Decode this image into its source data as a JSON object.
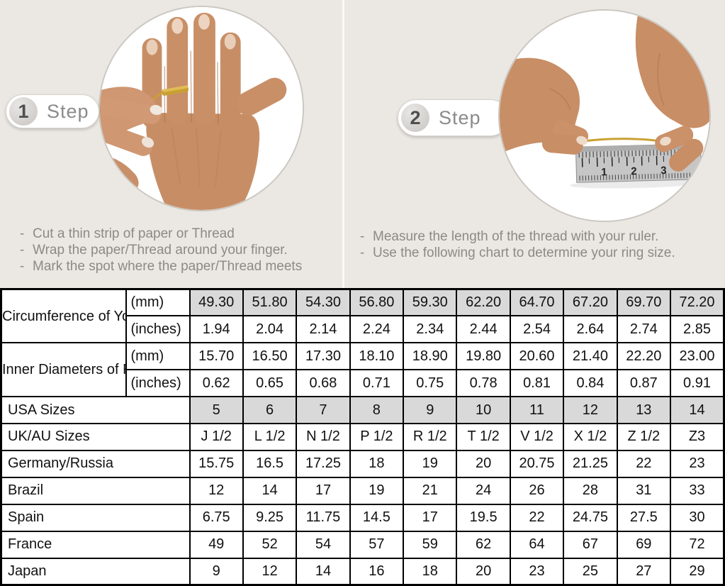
{
  "colors": {
    "top_background": "#ebe8e3",
    "highlight_cell": "#d9d9d9",
    "muted_text": "#8d8a85",
    "table_border": "#000000",
    "thread_gold": "#c9a132"
  },
  "steps": [
    {
      "number": "1",
      "label": "Step",
      "photo_alt": "hand with thread wrapped around ring finger",
      "instructions": [
        "Cut a thin strip of paper or Thread",
        "Wrap the paper/Thread around your finger.",
        "Mark the spot where the paper/Thread meets"
      ]
    },
    {
      "number": "2",
      "label": "Step",
      "photo_alt": "hands measuring thread length with a ruler",
      "ruler_numbers": [
        "1",
        "2",
        "3"
      ],
      "instructions": [
        "Measure the length of the thread with your ruler.",
        "Use the following chart to determine your ring size."
      ]
    }
  ],
  "table": {
    "corner_groups": [
      {
        "label": "Circumference of Your Finger",
        "rows": [
          {
            "unit": "(mm)",
            "highlight": true,
            "values": [
              "49.30",
              "51.80",
              "54.30",
              "56.80",
              "59.30",
              "62.20",
              "64.70",
              "67.20",
              "69.70",
              "72.20"
            ]
          },
          {
            "unit": "(inches)",
            "highlight": false,
            "values": [
              "1.94",
              "2.04",
              "2.14",
              "2.24",
              "2.34",
              "2.44",
              "2.54",
              "2.64",
              "2.74",
              "2.85"
            ]
          }
        ]
      },
      {
        "label": "Inner Diameters of Rings",
        "rows": [
          {
            "unit": "(mm)",
            "highlight": false,
            "values": [
              "15.70",
              "16.50",
              "17.30",
              "18.10",
              "18.90",
              "19.80",
              "20.60",
              "21.40",
              "22.20",
              "23.00"
            ]
          },
          {
            "unit": "(inches)",
            "highlight": false,
            "values": [
              "0.62",
              "0.65",
              "0.68",
              "0.71",
              "0.75",
              "0.78",
              "0.81",
              "0.84",
              "0.87",
              "0.91"
            ]
          }
        ]
      }
    ],
    "size_rows": [
      {
        "label": "USA Sizes",
        "highlight": true,
        "values": [
          "5",
          "6",
          "7",
          "8",
          "9",
          "10",
          "11",
          "12",
          "13",
          "14"
        ]
      },
      {
        "label": "UK/AU Sizes",
        "highlight": false,
        "values": [
          "J 1/2",
          "L 1/2",
          "N 1/2",
          "P 1/2",
          "R 1/2",
          "T 1/2",
          "V 1/2",
          "X 1/2",
          "Z 1/2",
          "Z3"
        ]
      },
      {
        "label": "Germany/Russia",
        "highlight": false,
        "values": [
          "15.75",
          "16.5",
          "17.25",
          "18",
          "19",
          "20",
          "20.75",
          "21.25",
          "22",
          "23"
        ]
      },
      {
        "label": "Brazil",
        "highlight": false,
        "values": [
          "12",
          "14",
          "17",
          "19",
          "21",
          "24",
          "26",
          "28",
          "31",
          "33"
        ]
      },
      {
        "label": "Spain",
        "highlight": false,
        "values": [
          "6.75",
          "9.25",
          "11.75",
          "14.5",
          "17",
          "19.5",
          "22",
          "24.75",
          "27.5",
          "30"
        ]
      },
      {
        "label": "France",
        "highlight": false,
        "values": [
          "49",
          "52",
          "54",
          "57",
          "59",
          "62",
          "64",
          "67",
          "69",
          "72"
        ]
      },
      {
        "label": "Japan",
        "highlight": false,
        "values": [
          "9",
          "12",
          "14",
          "16",
          "18",
          "20",
          "23",
          "25",
          "27",
          "29"
        ]
      }
    ]
  }
}
